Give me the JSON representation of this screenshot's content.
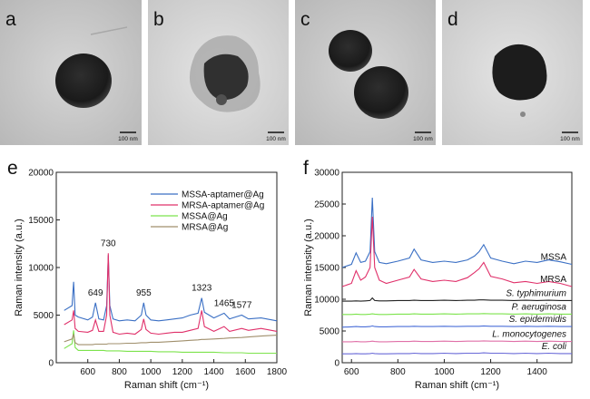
{
  "panels": [
    {
      "label": "a",
      "scale_bar": "100 nm"
    },
    {
      "label": "b",
      "scale_bar": "100 nm"
    },
    {
      "label": "c",
      "scale_bar": "100 nm"
    },
    {
      "label": "d",
      "scale_bar": "100 nm"
    }
  ],
  "chart_data": [
    {
      "type": "line",
      "panel_label": "e",
      "x_label": "Raman shift (cm⁻¹)",
      "y_label": "Raman intensity (a.u.)",
      "xlim": [
        400,
        1800
      ],
      "xticks": [
        600,
        800,
        1000,
        1200,
        1400,
        1600,
        1800
      ],
      "ylim": [
        0,
        20000
      ],
      "yticks": [
        0,
        5000,
        10000,
        15000,
        20000
      ],
      "legend": "upper right",
      "annotations": [
        649,
        730,
        955,
        1323,
        1465,
        1577
      ],
      "x": [
        450,
        500,
        510,
        520,
        540,
        600,
        630,
        649,
        670,
        700,
        720,
        730,
        740,
        760,
        800,
        850,
        900,
        940,
        955,
        970,
        1000,
        1050,
        1100,
        1150,
        1200,
        1250,
        1300,
        1323,
        1340,
        1400,
        1465,
        1500,
        1577,
        1620,
        1700,
        1800
      ],
      "series": [
        {
          "name": "MSSA-aptamer@Ag",
          "color": "#3a6fc4",
          "values": [
            5500,
            6000,
            8500,
            5000,
            4800,
            4500,
            4800,
            6300,
            4600,
            4500,
            6000,
            11300,
            6000,
            4600,
            4400,
            4500,
            4400,
            5000,
            6300,
            5000,
            4500,
            4400,
            4500,
            4600,
            4700,
            5000,
            5200,
            6800,
            5300,
            4700,
            5200,
            4600,
            5000,
            4600,
            4700,
            4400
          ]
        },
        {
          "name": "MRSA-aptamer@Ag",
          "color": "#e0306a",
          "values": [
            4000,
            4500,
            5500,
            3600,
            3300,
            3200,
            3400,
            4500,
            3300,
            3300,
            5000,
            11500,
            5000,
            3200,
            3000,
            3100,
            3000,
            3500,
            4600,
            3500,
            3100,
            3000,
            3100,
            3200,
            3200,
            3400,
            3600,
            5500,
            3800,
            3300,
            3800,
            3300,
            3600,
            3400,
            3600,
            3300
          ]
        },
        {
          "name": "MSSA@Ag",
          "color": "#7ce34c",
          "values": [
            1500,
            2000,
            3400,
            1600,
            1300,
            1300,
            1300,
            1300,
            1300,
            1300,
            1250,
            1250,
            1250,
            1250,
            1250,
            1200,
            1200,
            1200,
            1200,
            1200,
            1200,
            1150,
            1150,
            1150,
            1100,
            1100,
            1100,
            1100,
            1100,
            1100,
            1050,
            1050,
            1050,
            1000,
            1000,
            1000
          ]
        },
        {
          "name": "MRSA@Ag",
          "color": "#a08f6c",
          "values": [
            2200,
            2500,
            3000,
            2100,
            1900,
            1900,
            1900,
            1950,
            1950,
            1950,
            1950,
            2000,
            2000,
            2000,
            2000,
            2050,
            2050,
            2100,
            2100,
            2100,
            2150,
            2150,
            2200,
            2250,
            2300,
            2350,
            2400,
            2450,
            2450,
            2500,
            2550,
            2600,
            2650,
            2700,
            2800,
            2900
          ]
        }
      ]
    },
    {
      "type": "line",
      "panel_label": "f",
      "x_label": "Raman shift (cm⁻¹)",
      "y_label": "Raman intensity (a.u.)",
      "xlim": [
        560,
        1550
      ],
      "xticks": [
        600,
        800,
        1000,
        1200,
        1400
      ],
      "ylim": [
        0,
        30000
      ],
      "yticks": [
        0,
        5000,
        10000,
        15000,
        20000,
        25000,
        30000
      ],
      "legend": "right",
      "x": [
        560,
        600,
        620,
        640,
        660,
        680,
        690,
        700,
        720,
        750,
        800,
        850,
        870,
        900,
        950,
        1000,
        1050,
        1100,
        1130,
        1150,
        1170,
        1200,
        1250,
        1300,
        1350,
        1400,
        1450,
        1500,
        1550
      ],
      "series": [
        {
          "name": "MSSA",
          "color": "#3a6fc4",
          "values": [
            15000,
            15500,
            17300,
            15800,
            16000,
            17500,
            26000,
            17500,
            15800,
            15600,
            16000,
            16500,
            17900,
            16200,
            15800,
            16000,
            15800,
            16200,
            16800,
            17500,
            18600,
            16500,
            16000,
            15600,
            16000,
            15800,
            16200,
            15900,
            15500
          ]
        },
        {
          "name": "MRSA",
          "color": "#e0306a",
          "values": [
            12000,
            12500,
            14500,
            13000,
            13500,
            15000,
            23000,
            15000,
            13000,
            12500,
            13000,
            13500,
            14700,
            13200,
            12800,
            13000,
            12800,
            13400,
            14200,
            14800,
            15800,
            13600,
            13200,
            12600,
            12800,
            12500,
            12800,
            12500,
            12000
          ]
        },
        {
          "name": "S. typhimurium",
          "color": "#222222",
          "font_style": "italic",
          "values": [
            9700,
            9700,
            9750,
            9700,
            9750,
            9800,
            10200,
            9800,
            9750,
            9750,
            9800,
            9800,
            9850,
            9800,
            9800,
            9850,
            9800,
            9850,
            9850,
            9900,
            9900,
            9850,
            9850,
            9800,
            9850,
            9800,
            9850,
            9800,
            9800
          ]
        },
        {
          "name": "P. aeruginosa",
          "color": "#7ce34c",
          "font_style": "italic",
          "values": [
            7600,
            7600,
            7650,
            7600,
            7600,
            7650,
            7700,
            7650,
            7600,
            7600,
            7650,
            7650,
            7700,
            7650,
            7650,
            7700,
            7650,
            7700,
            7700,
            7700,
            7750,
            7700,
            7700,
            7650,
            7700,
            7650,
            7700,
            7650,
            7650
          ]
        },
        {
          "name": "S. epidermidis",
          "color": "#4a6ed8",
          "font_style": "italic",
          "values": [
            5600,
            5650,
            5700,
            5650,
            5650,
            5700,
            5800,
            5700,
            5650,
            5650,
            5700,
            5700,
            5750,
            5700,
            5700,
            5750,
            5700,
            5750,
            5750,
            5750,
            5800,
            5750,
            5750,
            5700,
            5750,
            5700,
            5750,
            5700,
            5700
          ]
        },
        {
          "name": "L. monocytogenes",
          "color": "#e070a8",
          "font_style": "italic",
          "values": [
            3300,
            3300,
            3350,
            3300,
            3300,
            3350,
            3400,
            3350,
            3300,
            3300,
            3350,
            3350,
            3400,
            3350,
            3350,
            3400,
            3350,
            3400,
            3400,
            3400,
            3450,
            3400,
            3400,
            3350,
            3400,
            3350,
            3400,
            3350,
            3350
          ]
        },
        {
          "name": "E. coli",
          "color": "#6a6ad8",
          "font_style": "italic",
          "values": [
            1400,
            1400,
            1450,
            1400,
            1400,
            1450,
            1500,
            1450,
            1400,
            1400,
            1450,
            1450,
            1500,
            1450,
            1450,
            1500,
            1450,
            1500,
            1500,
            1500,
            1550,
            1500,
            1500,
            1450,
            1500,
            1450,
            1500,
            1450,
            1450
          ]
        }
      ]
    }
  ]
}
